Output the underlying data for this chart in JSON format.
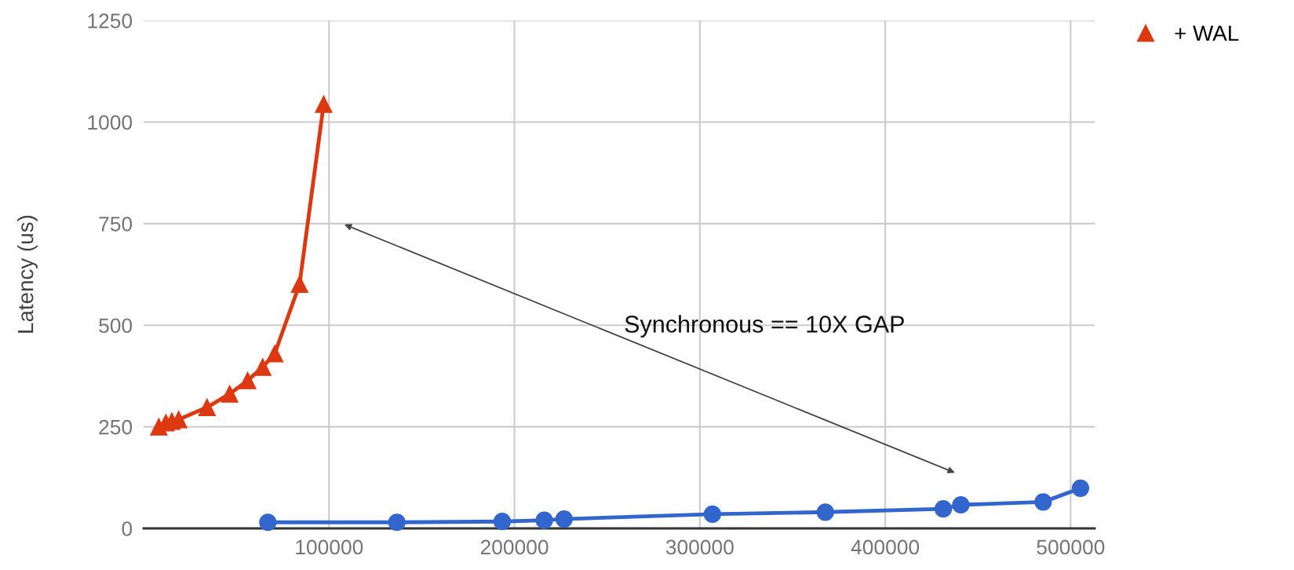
{
  "chart_data": {
    "type": "line",
    "ylabel": "Latency (us)",
    "xlim": [
      0,
      513000
    ],
    "xticks": [
      100000,
      200000,
      300000,
      400000,
      500000
    ],
    "ylim": [
      0,
      1250
    ],
    "yticks": [
      0,
      250,
      500,
      750,
      1000,
      1250
    ],
    "grid": true,
    "legend": "top right",
    "line_style": "solid",
    "annotations": [
      "Synchronous == 10X GAP"
    ],
    "series": [
      {
        "color": "#3366cc",
        "marker": "circle",
        "x": [
          67000,
          136600,
          193400,
          216100,
          226800,
          306800,
          367700,
          431300,
          440800,
          485200,
          505300
        ],
        "values": [
          15,
          15,
          17,
          20,
          23,
          35,
          40,
          48,
          58,
          65,
          99
        ]
      },
      {
        "name": "+ WAL",
        "color": "#dc3912",
        "marker": "triangle",
        "x": [
          8200,
          12000,
          15200,
          18900,
          34200,
          46400,
          56100,
          64200,
          70700,
          84100,
          97100
        ],
        "values": [
          250,
          260,
          264,
          268,
          298,
          331,
          364,
          397,
          430,
          601,
          1044
        ]
      }
    ]
  }
}
